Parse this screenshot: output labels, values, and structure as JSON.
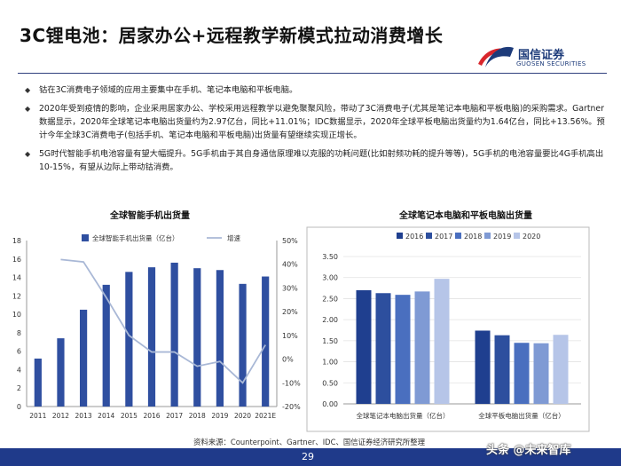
{
  "title": "3C锂电池：居家办公+远程教学新模式拉动消费增长",
  "brand": {
    "name_cn": "国信证券",
    "name_en": "GUOSEN SECURITIES",
    "red": "#d9262c",
    "blue": "#1d3b7a"
  },
  "bullets": [
    "钴在3C消费电子领域的应用主要集中在手机、笔记本电脑和平板电脑。",
    "2020年受到疫情的影响，企业采用居家办公、学校采用远程教学以避免聚聚风险，带动了3C消费电子(尤其是笔记本电脑和平板电脑)的采购需求。Gartner数据显示，2020年全球笔记本电脑出货量约为2.97亿台，同比+11.01%；IDC数据显示，2020年全球平板电脑出货量约为1.64亿台，同比+13.56%。预计今年全球3C消费电子(包括手机、笔记本电脑和平板电脑)出货量有望继续实现正增长。",
    "5G时代智能手机电池容量有望大幅提升。5G手机由于其自身通信原理难以克服的功耗问题(比如射频功耗的提升等等)，5G手机的电池容量要比4G手机高出10-15%，有望从边际上带动钴消费。"
  ],
  "bullet_marker": "◆",
  "chart_data": [
    {
      "type": "bar",
      "title": "全球智能手机出货量",
      "categories": [
        "2011",
        "2012",
        "2013",
        "2014",
        "2015",
        "2016",
        "2017",
        "2018",
        "2019",
        "2020",
        "2021E"
      ],
      "series": [
        {
          "name": "全球智能手机出货量（亿台）",
          "type": "bar",
          "axis": "left",
          "color": "#2f4fa0",
          "values": [
            5.2,
            7.4,
            10.5,
            13.2,
            14.6,
            15.1,
            15.6,
            15.0,
            14.8,
            13.3,
            14.1
          ]
        },
        {
          "name": "增速",
          "type": "line",
          "axis": "right",
          "color": "#a9b8d6",
          "values": [
            null,
            0.42,
            0.41,
            0.26,
            0.1,
            0.03,
            0.03,
            -0.03,
            -0.01,
            -0.1,
            0.06
          ]
        }
      ],
      "ylim": [
        0,
        18
      ],
      "yticks": [
        "0",
        "2",
        "4",
        "6",
        "8",
        "10",
        "12",
        "14",
        "16",
        "18"
      ],
      "y2lim": [
        -0.2,
        0.5
      ],
      "y2ticks": [
        "-20%",
        "-10%",
        "0%",
        "10%",
        "20%",
        "30%",
        "40%",
        "50%"
      ],
      "legend_position": "top"
    },
    {
      "type": "bar",
      "title": "全球笔记本电脑和平板电脑出货量",
      "categories": [
        "全球笔记本电脑出货量（亿台）",
        "全球平板电脑出货量（亿台）"
      ],
      "series": [
        {
          "name": "2016",
          "color": "#1f3f8f",
          "values": [
            2.7,
            1.74
          ]
        },
        {
          "name": "2017",
          "color": "#2d4f9e",
          "values": [
            2.63,
            1.63
          ]
        },
        {
          "name": "2018",
          "color": "#4a6fbf",
          "values": [
            2.59,
            1.45
          ]
        },
        {
          "name": "2019",
          "color": "#7f9ad4",
          "values": [
            2.67,
            1.44
          ]
        },
        {
          "name": "2020",
          "color": "#b6c5e8",
          "values": [
            2.97,
            1.64
          ]
        }
      ],
      "ylim": [
        0,
        3.5
      ],
      "yticks": [
        "0.00",
        "0.50",
        "1.00",
        "1.50",
        "2.00",
        "2.50",
        "3.00",
        "3.50"
      ],
      "legend_position": "top"
    }
  ],
  "source": "资料来源：Counterpoint、Gartner、IDC、国信证券经济研究所整理",
  "page_number": "29",
  "watermark": "头条 @未来智库"
}
